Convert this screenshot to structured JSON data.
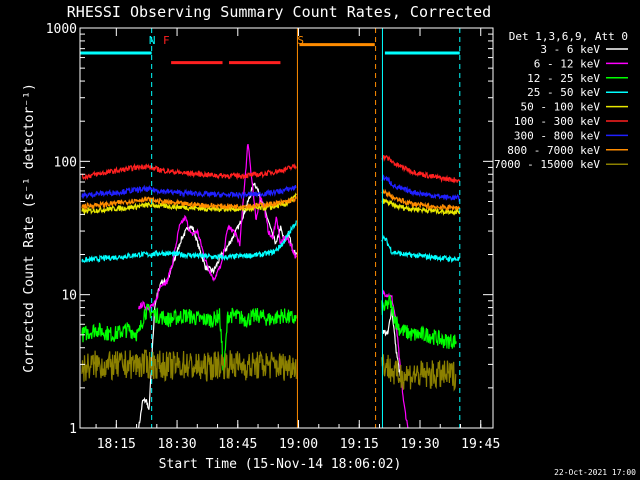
{
  "chart_data": {
    "type": "line",
    "title": "RHESSI Observing Summary Count Rates, Corrected",
    "xlabel": "Start Time (15-Nov-14 18:06:02)",
    "ylabel": "Corrected Count Rate (s⁻¹ detector⁻¹)",
    "y_scale": "log",
    "ylim": [
      1,
      1000
    ],
    "xlim_minutes": [
      0,
      102
    ],
    "x_tick_labels": [
      "18:15",
      "18:30",
      "18:45",
      "19:00",
      "19:15",
      "19:30",
      "19:45"
    ],
    "x_tick_minutes": [
      8.97,
      23.97,
      38.97,
      53.97,
      68.97,
      83.97,
      98.97
    ],
    "y_tick_labels": [
      "1",
      "10",
      "100",
      "1000"
    ],
    "y_tick_values": [
      1,
      10,
      100,
      1000
    ],
    "stamp": "22-Oct-2021 17:00",
    "legend": {
      "header": "Det 1,3,6,9, Att 0",
      "entries": [
        {
          "label": "3 - 6 keV",
          "color": "#ffffff"
        },
        {
          "label": "6 - 12 keV",
          "color": "#ff00ff"
        },
        {
          "label": "12 - 25 keV",
          "color": "#00ff00"
        },
        {
          "label": "25 - 50 keV",
          "color": "#00ffff"
        },
        {
          "label": "50 - 100 keV",
          "color": "#e8e800"
        },
        {
          "label": "100 - 300 keV",
          "color": "#ff2020"
        },
        {
          "label": "300 - 800 keV",
          "color": "#2020ff"
        },
        {
          "label": "800 - 7000 keV",
          "color": "#ff8c00"
        },
        {
          "label": "7000 - 15000 keV",
          "color": "#8b8000"
        }
      ]
    },
    "data_gaps_minutes": [
      [
        53.5,
        74.5
      ]
    ],
    "markers": [
      {
        "label": "N",
        "color": "#00ffff",
        "minute": 17.0
      },
      {
        "label": "F",
        "color": "#ff2020",
        "minute": 20.5
      },
      {
        "label": "S",
        "color": "#ff8c00",
        "minute": 53.7
      }
    ],
    "vertical_lines": [
      {
        "color": "#00ffff",
        "style": "dashed",
        "minute": 17.7
      },
      {
        "color": "#ff8c00",
        "style": "solid",
        "minute": 53.7
      },
      {
        "color": "#ff8c00",
        "style": "dashed",
        "minute": 73.0
      },
      {
        "color": "#00ffff",
        "style": "solid",
        "minute": 74.7
      },
      {
        "color": "#00ffff",
        "style": "dashed",
        "minute": 93.8
      }
    ],
    "state_bars": [
      {
        "name": "night",
        "color": "#00ffff",
        "y": 650,
        "segments": [
          [
            0,
            17.7
          ],
          [
            75.3,
            93.8
          ]
        ]
      },
      {
        "name": "flare",
        "color": "#ff2020",
        "y": 550,
        "segments": [
          [
            22.5,
            35.2
          ],
          [
            36.8,
            49.5
          ]
        ]
      },
      {
        "name": "saa",
        "color": "#ff8c00",
        "y": 750,
        "segments": [
          [
            54.2,
            72.8
          ]
        ]
      }
    ],
    "series": [
      {
        "name": "3 - 6 keV",
        "color": "#ffffff",
        "x": [
          14.5,
          15.5,
          16.5,
          17.0,
          18.5,
          20.0,
          21.5,
          23.0,
          25.0,
          27.0,
          28.0,
          29.5,
          31.0,
          33.0,
          35.0,
          36.5,
          38.0,
          39.5,
          41.0,
          42.0,
          43.0,
          44.0,
          45.5,
          46.5,
          47.5,
          48.5,
          49.5,
          50.5,
          51.5,
          52.5,
          53.3,
          76.0,
          77.0,
          78.0,
          79.0,
          80.0
        ],
        "y": [
          1.0,
          1.6,
          1.6,
          1.3,
          8.5,
          12.5,
          12.5,
          17.0,
          26.0,
          33.0,
          31.0,
          22.0,
          16.0,
          15.0,
          20.0,
          23.0,
          28.0,
          34.0,
          45.0,
          55.0,
          70.0,
          60.0,
          44.0,
          36.0,
          28.0,
          24.0,
          32.0,
          25.0,
          29.0,
          22.0,
          20.0,
          5.0,
          8.0,
          4.0,
          2.5,
          2.0
        ]
      },
      {
        "name": "6 - 12 keV",
        "color": "#ff00ff",
        "x": [
          14.5,
          15.5,
          16.5,
          17.0,
          18.5,
          20.0,
          21.5,
          23.0,
          24.5,
          26.0,
          27.5,
          29.0,
          31.0,
          33.0,
          35.0,
          36.5,
          38.0,
          39.5,
          40.5,
          41.5,
          42.5,
          43.5,
          44.5,
          45.5,
          46.5,
          47.5,
          48.5,
          49.5,
          50.5,
          51.5,
          52.5,
          53.3,
          76.0,
          77.0,
          78.0,
          79.0,
          80.0,
          81.0
        ],
        "y": [
          8.0,
          8.5,
          8.0,
          8.0,
          8.5,
          12.0,
          12.5,
          18.0,
          32.0,
          38.0,
          28.0,
          30.0,
          18.0,
          13.0,
          17.0,
          32.0,
          30.0,
          24.0,
          60.0,
          140.0,
          70.0,
          35.0,
          55.0,
          45.0,
          30.0,
          26.0,
          38.0,
          24.0,
          27.0,
          26.0,
          22.0,
          19.0,
          10.0,
          9.5,
          6.5,
          3.0,
          1.5,
          1.0
        ]
      },
      {
        "name": "12 - 25 keV",
        "color": "#00ff00",
        "x": [
          0.5,
          4.0,
          8.0,
          12.0,
          14.5,
          16.0,
          17.5,
          19.0,
          22.0,
          26.0,
          30.0,
          33.0,
          34.5,
          35.5,
          36.5,
          38.0,
          41.0,
          44.0,
          47.0,
          50.0,
          53.3,
          75.5,
          76.5,
          77.5,
          79.0,
          82.0,
          86.0,
          90.0,
          93.0
        ],
        "y": [
          5.0,
          5.5,
          5.0,
          5.5,
          5.0,
          7.5,
          7.5,
          7.0,
          6.5,
          7.0,
          6.5,
          6.5,
          7.0,
          2.5,
          7.0,
          7.0,
          6.5,
          7.0,
          6.5,
          7.0,
          6.5,
          8.0,
          9.0,
          7.0,
          5.5,
          5.0,
          5.0,
          4.5,
          4.5
        ]
      },
      {
        "name": "25 - 50 keV",
        "color": "#00ffff",
        "x": [
          0.5,
          4.0,
          8.0,
          12.0,
          14.5,
          17.0,
          20.0,
          25.0,
          30.0,
          35.0,
          40.0,
          45.0,
          48.0,
          50.0,
          52.0,
          53.3,
          75.5,
          77.0,
          80.0,
          84.0,
          88.0,
          92.0,
          93.8
        ],
        "y": [
          18.0,
          18.5,
          19.0,
          19.5,
          20.0,
          20.0,
          20.5,
          20.0,
          19.5,
          19.0,
          19.5,
          20.0,
          21.0,
          24.0,
          30.0,
          35.0,
          26.0,
          21.0,
          20.0,
          19.5,
          19.0,
          18.5,
          18.5
        ]
      },
      {
        "name": "50 - 100 keV",
        "color": "#e8e800",
        "x": [
          0.5,
          4.0,
          8.0,
          12.0,
          17.0,
          22.0,
          27.0,
          32.0,
          37.0,
          42.0,
          47.0,
          51.0,
          53.3,
          75.5,
          78.0,
          82.0,
          86.0,
          90.0,
          93.8
        ],
        "y": [
          42.0,
          43.0,
          44.0,
          45.0,
          47.0,
          46.0,
          45.0,
          44.0,
          44.0,
          44.0,
          45.0,
          48.0,
          55.0,
          50.0,
          46.0,
          44.0,
          43.0,
          42.0,
          42.0
        ]
      },
      {
        "name": "100 - 300 keV",
        "color": "#ff2020",
        "x": [
          0.5,
          4.0,
          8.0,
          12.0,
          16.0,
          20.0,
          25.0,
          30.0,
          35.0,
          40.0,
          45.0,
          50.0,
          53.3,
          75.5,
          78.0,
          82.0,
          86.0,
          90.0,
          93.8
        ],
        "y": [
          76.0,
          80.0,
          84.0,
          88.0,
          92.0,
          86.0,
          82.0,
          80.0,
          78.0,
          78.0,
          80.0,
          86.0,
          92.0,
          108.0,
          95.0,
          84.0,
          78.0,
          74.0,
          72.0
        ]
      },
      {
        "name": "300 - 800 keV",
        "color": "#2020ff",
        "x": [
          0.5,
          4.0,
          8.0,
          12.0,
          16.0,
          20.0,
          25.0,
          30.0,
          35.0,
          40.0,
          45.0,
          50.0,
          53.3,
          75.5,
          78.0,
          82.0,
          86.0,
          90.0,
          93.8
        ],
        "y": [
          55.0,
          57.0,
          58.0,
          60.0,
          62.0,
          60.0,
          58.0,
          57.0,
          56.0,
          56.0,
          57.0,
          60.0,
          64.0,
          75.0,
          64.0,
          59.0,
          56.0,
          54.0,
          53.0
        ]
      },
      {
        "name": "800 - 7000 keV",
        "color": "#ff8c00",
        "x": [
          0.5,
          4.0,
          8.0,
          12.0,
          16.0,
          20.0,
          25.0,
          30.0,
          35.0,
          40.0,
          45.0,
          50.0,
          53.3,
          75.5,
          78.0,
          82.0,
          86.0,
          90.0,
          93.8
        ],
        "y": [
          46.0,
          47.0,
          48.0,
          50.0,
          52.0,
          50.0,
          48.0,
          47.0,
          46.0,
          46.0,
          47.0,
          49.0,
          52.0,
          58.0,
          52.0,
          48.0,
          46.0,
          45.0,
          45.0
        ]
      },
      {
        "name": "7000 - 15000 keV",
        "color": "#8b8000",
        "x": [
          0.5,
          4.0,
          8.0,
          12.0,
          14.0,
          16.0,
          18.0,
          22.0,
          26.0,
          30.0,
          34.0,
          38.0,
          42.0,
          46.0,
          50.0,
          53.3,
          75.5,
          78.0,
          82.0,
          86.0,
          90.0,
          93.0
        ],
        "y": [
          2.8,
          3.0,
          2.9,
          3.0,
          3.0,
          3.0,
          3.0,
          2.9,
          3.0,
          2.8,
          3.0,
          3.0,
          2.9,
          3.0,
          2.9,
          3.0,
          3.0,
          2.5,
          2.5,
          2.5,
          2.5,
          2.5
        ]
      }
    ]
  }
}
